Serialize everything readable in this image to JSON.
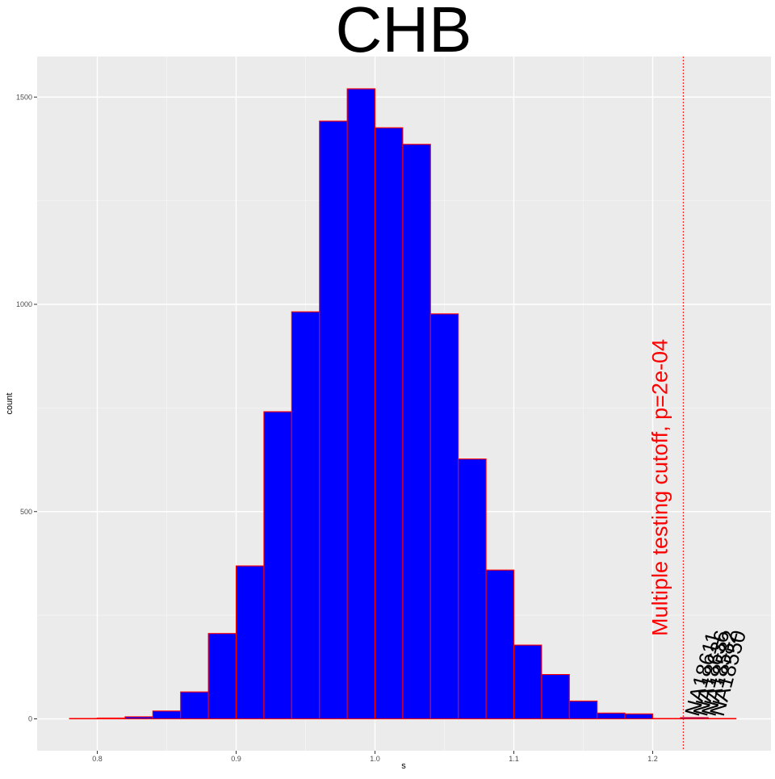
{
  "chart_data": {
    "type": "bar",
    "title": "CHB",
    "xlabel": "s",
    "ylabel": "count",
    "xlim": [
      0.75,
      1.28
    ],
    "ylim": [
      -75,
      1575
    ],
    "x_ticks": [
      0.8,
      0.9,
      1.0,
      1.1,
      1.2
    ],
    "x_tick_labels": [
      "0.8",
      "0.9",
      "1.0",
      "1.1",
      "1.2"
    ],
    "y_ticks": [
      0,
      500,
      1000,
      1500
    ],
    "y_tick_labels": [
      "0",
      "500",
      "1000",
      "1500"
    ],
    "grid": true,
    "bin_width": 0.02,
    "bin_starts": [
      0.78,
      0.8,
      0.82,
      0.84,
      0.86,
      0.88,
      0.9,
      0.92,
      0.94,
      0.96,
      0.98,
      1.0,
      1.02,
      1.04,
      1.06,
      1.08,
      1.1,
      1.12,
      1.14,
      1.16,
      1.18,
      1.2,
      1.22,
      1.24
    ],
    "values": [
      1,
      2,
      5,
      19,
      65,
      206,
      369,
      741,
      982,
      1442,
      1520,
      1426,
      1386,
      977,
      627,
      359,
      178,
      107,
      43,
      14,
      12,
      1,
      3,
      1
    ],
    "bar_fill": "#0000ff",
    "bar_edge": "#ff0000",
    "cutoff": {
      "x": 1.222,
      "label": "Multiple testing cutoff, p=2e-04",
      "color": "#ff0000"
    },
    "annotations": [
      {
        "text": "NA18611",
        "x": 1.226,
        "y": 0
      },
      {
        "text": "NA18636",
        "x": 1.232,
        "y": 0
      },
      {
        "text": "NA18582",
        "x": 1.238,
        "y": 0
      },
      {
        "text": "NA18550",
        "x": 1.244,
        "y": 0
      }
    ]
  }
}
